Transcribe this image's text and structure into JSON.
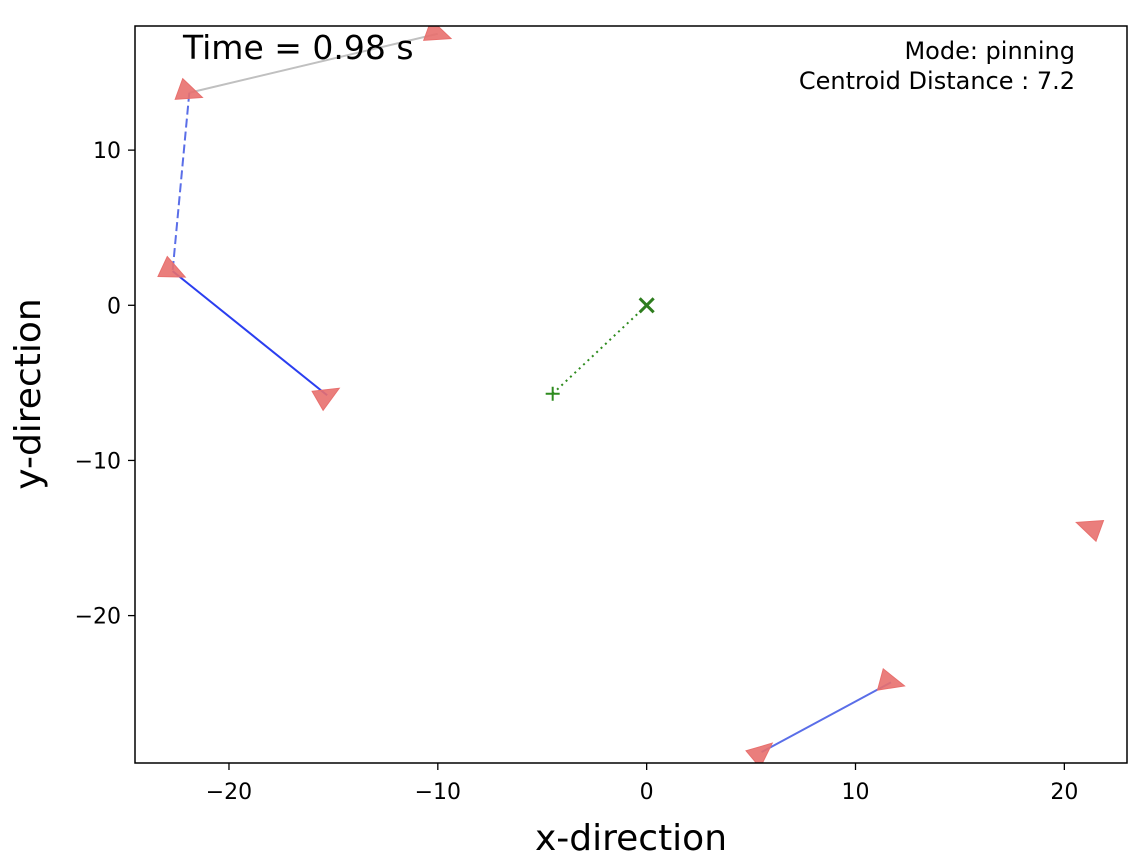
{
  "chart_data": {
    "type": "scatter",
    "title": "",
    "xlabel": "x-direction",
    "ylabel": "y-direction",
    "xlim": [
      -24.5,
      23
    ],
    "ylim": [
      -29.5,
      18
    ],
    "xticks": [
      -20,
      -10,
      0,
      10,
      20
    ],
    "yticks": [
      -20,
      -10,
      0,
      10
    ],
    "grid": false,
    "annotations": {
      "time": "Time = 0.98 s",
      "mode": "Mode: pinning",
      "centroid_distance": "Centroid Distance : 7.2"
    },
    "agent_color": "#e8706e",
    "agents": [
      {
        "x": -10.0,
        "y": 17.5,
        "heading_deg": -20
      },
      {
        "x": -21.9,
        "y": 13.7,
        "heading_deg": -20
      },
      {
        "x": -22.7,
        "y": 2.2,
        "heading_deg": -25
      },
      {
        "x": -15.3,
        "y": -5.8,
        "heading_deg": 30
      },
      {
        "x": 21.2,
        "y": -14.3,
        "heading_deg": 160
      },
      {
        "x": 11.7,
        "y": -24.3,
        "heading_deg": -15
      },
      {
        "x": 5.5,
        "y": -28.8,
        "heading_deg": 40
      }
    ],
    "links": [
      {
        "from": [
          -21.9,
          13.7
        ],
        "to": [
          -10.0,
          17.5
        ],
        "color": "#c0c0c0",
        "style": "solid"
      },
      {
        "from": [
          -21.9,
          13.7
        ],
        "to": [
          -22.7,
          2.2
        ],
        "color": "#5a6ee8",
        "style": "dashed"
      },
      {
        "from": [
          -22.7,
          2.2
        ],
        "to": [
          -15.3,
          -5.8
        ],
        "color": "#2a3ef0",
        "style": "solid"
      },
      {
        "from": [
          5.5,
          -28.8
        ],
        "to": [
          11.7,
          -24.3
        ],
        "color": "#5a6ee8",
        "style": "solid"
      }
    ],
    "target": {
      "x": 0,
      "y": 0,
      "marker": "x",
      "color": "#2e7d1e"
    },
    "centroid": {
      "x": -4.5,
      "y": -5.7,
      "marker": "+",
      "color": "#2e8b1e"
    },
    "centroid_link": {
      "from": [
        -4.5,
        -5.7
      ],
      "to": [
        0,
        0
      ],
      "color": "#2e8b1e",
      "style": "dotted"
    }
  }
}
